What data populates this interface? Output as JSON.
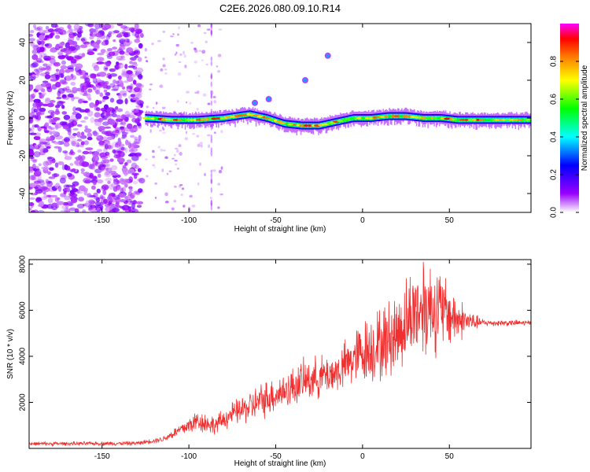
{
  "title": "C2E6.2026.080.09.10.R14",
  "colors": {
    "snr_line": "#f03030",
    "frame": "#000000"
  },
  "chart_data": [
    {
      "type": "heatmap",
      "xlabel": "Height of straight line (km)",
      "ylabel": "Frequency (Hz)",
      "xlim": [
        -192,
        97
      ],
      "ylim": [
        -50,
        50
      ],
      "xticks": [
        -150,
        -100,
        -50,
        0,
        50
      ],
      "yticks": [
        -40,
        -20,
        0,
        20,
        40
      ],
      "colorbar": {
        "label": "Normalized spectral amplitude",
        "range": [
          0,
          1
        ],
        "ticks": [
          "0.0",
          "0.2",
          "0.4",
          "0.6",
          "0.8"
        ],
        "colormap": [
          "#ffffff",
          "#9900ff",
          "#0000ff",
          "#00ffff",
          "#00ff00",
          "#ffff00",
          "#ff8000",
          "#ff0000",
          "#ff00ff"
        ]
      },
      "ridge": {
        "start_x": -125,
        "points": [
          [
            -125,
            0
          ],
          [
            -110,
            -1
          ],
          [
            -95,
            -1
          ],
          [
            -80,
            0
          ],
          [
            -65,
            2
          ],
          [
            -55,
            0
          ],
          [
            -45,
            -3
          ],
          [
            -35,
            -4
          ],
          [
            -25,
            -4
          ],
          [
            -15,
            -2
          ],
          [
            -5,
            0
          ],
          [
            5,
            0
          ],
          [
            15,
            1
          ],
          [
            25,
            1
          ],
          [
            35,
            0
          ],
          [
            45,
            0
          ],
          [
            55,
            -1
          ],
          [
            65,
            -1
          ],
          [
            75,
            -1
          ],
          [
            85,
            -1
          ],
          [
            95,
            -1
          ]
        ]
      },
      "features": [
        {
          "x": -62,
          "y": 8
        },
        {
          "x": -54,
          "y": 10
        },
        {
          "x": -33,
          "y": 20
        },
        {
          "x": -20,
          "y": 33
        }
      ]
    },
    {
      "type": "line",
      "xlabel": "Height of straight line (km)",
      "ylabel": "SNR (10 * v/v)",
      "xlim": [
        -192,
        97
      ],
      "ylim": [
        0,
        8200
      ],
      "xticks": [
        -150,
        -100,
        -50,
        0,
        50
      ],
      "yticks": [
        2000,
        4000,
        6000,
        8000
      ],
      "series": [
        {
          "envelope": [
            [
              -192,
              200,
              80
            ],
            [
              -130,
              220,
              90
            ],
            [
              -115,
              400,
              120
            ],
            [
              -105,
              800,
              300
            ],
            [
              -95,
              1200,
              500
            ],
            [
              -85,
              1000,
              400
            ],
            [
              -75,
              1500,
              500
            ],
            [
              -65,
              1800,
              700
            ],
            [
              -55,
              2200,
              800
            ],
            [
              -45,
              2500,
              800
            ],
            [
              -35,
              2900,
              900
            ],
            [
              -25,
              3100,
              900
            ],
            [
              -15,
              3300,
              900
            ],
            [
              -5,
              3900,
              1200
            ],
            [
              0,
              4200,
              1400
            ],
            [
              10,
              4500,
              1600
            ],
            [
              20,
              5000,
              1800
            ],
            [
              30,
              6000,
              2000
            ],
            [
              38,
              6200,
              2200
            ],
            [
              45,
              6000,
              1800
            ],
            [
              55,
              5600,
              1000
            ],
            [
              63,
              5500,
              400
            ],
            [
              70,
              5450,
              150
            ],
            [
              97,
              5450,
              120
            ]
          ],
          "peak_x": 35,
          "peak_y": 8100
        }
      ]
    }
  ]
}
